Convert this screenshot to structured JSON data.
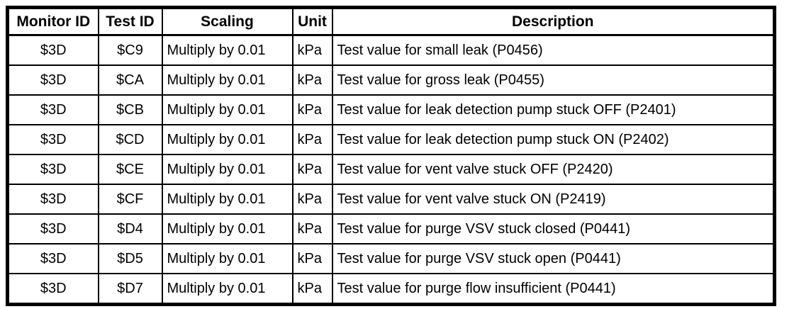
{
  "table": {
    "columns": [
      "Monitor ID",
      "Test ID",
      "Scaling",
      "Unit",
      "Description"
    ],
    "rows": [
      {
        "monitor_id": "$3D",
        "test_id": "$C9",
        "scaling": "Multiply by 0.01",
        "unit": "kPa",
        "description": "Test value for small leak (P0456)"
      },
      {
        "monitor_id": "$3D",
        "test_id": "$CA",
        "scaling": "Multiply by 0.01",
        "unit": "kPa",
        "description": "Test value for gross leak (P0455)"
      },
      {
        "monitor_id": "$3D",
        "test_id": "$CB",
        "scaling": "Multiply by 0.01",
        "unit": "kPa",
        "description": "Test value for leak detection pump stuck OFF (P2401)"
      },
      {
        "monitor_id": "$3D",
        "test_id": "$CD",
        "scaling": "Multiply by 0.01",
        "unit": "kPa",
        "description": "Test value for leak detection pump stuck ON (P2402)"
      },
      {
        "monitor_id": "$3D",
        "test_id": "$CE",
        "scaling": "Multiply by 0.01",
        "unit": "kPa",
        "description": "Test value for vent valve stuck OFF (P2420)"
      },
      {
        "monitor_id": "$3D",
        "test_id": "$CF",
        "scaling": "Multiply by 0.01",
        "unit": "kPa",
        "description": "Test value for vent valve stuck ON (P2419)"
      },
      {
        "monitor_id": "$3D",
        "test_id": "$D4",
        "scaling": "Multiply by 0.01",
        "unit": "kPa",
        "description": "Test value for purge VSV stuck closed (P0441)"
      },
      {
        "monitor_id": "$3D",
        "test_id": "$D5",
        "scaling": "Multiply by 0.01",
        "unit": "kPa",
        "description": "Test value for purge VSV stuck open (P0441)"
      },
      {
        "monitor_id": "$3D",
        "test_id": "$D7",
        "scaling": "Multiply by 0.01",
        "unit": "kPa",
        "description": "Test value for purge flow insufficient (P0441)"
      }
    ],
    "colors": {
      "border": "#000000",
      "text": "#000000",
      "background": "#ffffff"
    }
  }
}
